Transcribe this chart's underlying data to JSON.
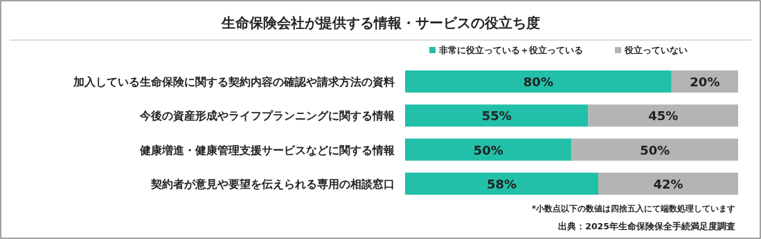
{
  "chart_data": {
    "type": "bar",
    "title": "生命保険会社が提供する情報・サービスの役立ち度",
    "orientation": "horizontal",
    "stacked": true,
    "xlim": [
      0,
      100
    ],
    "legend": "top right",
    "categories": [
      "加入している生命保険に関する契約内容の確認や請求方法の資料",
      "今後の資産形成やライフプランニングに関する情報",
      "健康増進・健康管理支援サービスなどに関する情報",
      "契約者が意見や要望を伝えられる専用の相談窓口"
    ],
    "series": [
      {
        "name": "非常に役立っている＋役立っている",
        "color": "#22c0a8",
        "values": [
          80,
          55,
          50,
          58
        ],
        "value_labels": [
          "80%",
          "55%",
          "50%",
          "58%"
        ]
      },
      {
        "name": "役立っていない",
        "color": "#b4b4b4",
        "values": [
          20,
          45,
          50,
          42
        ],
        "value_labels": [
          "20%",
          "45%",
          "50%",
          "42%"
        ]
      }
    ],
    "annotations": [
      "*小数点以下の数値は四捨五入にて端数処理しています",
      "出典：2025年生命保険保全手続満足度調査"
    ]
  }
}
